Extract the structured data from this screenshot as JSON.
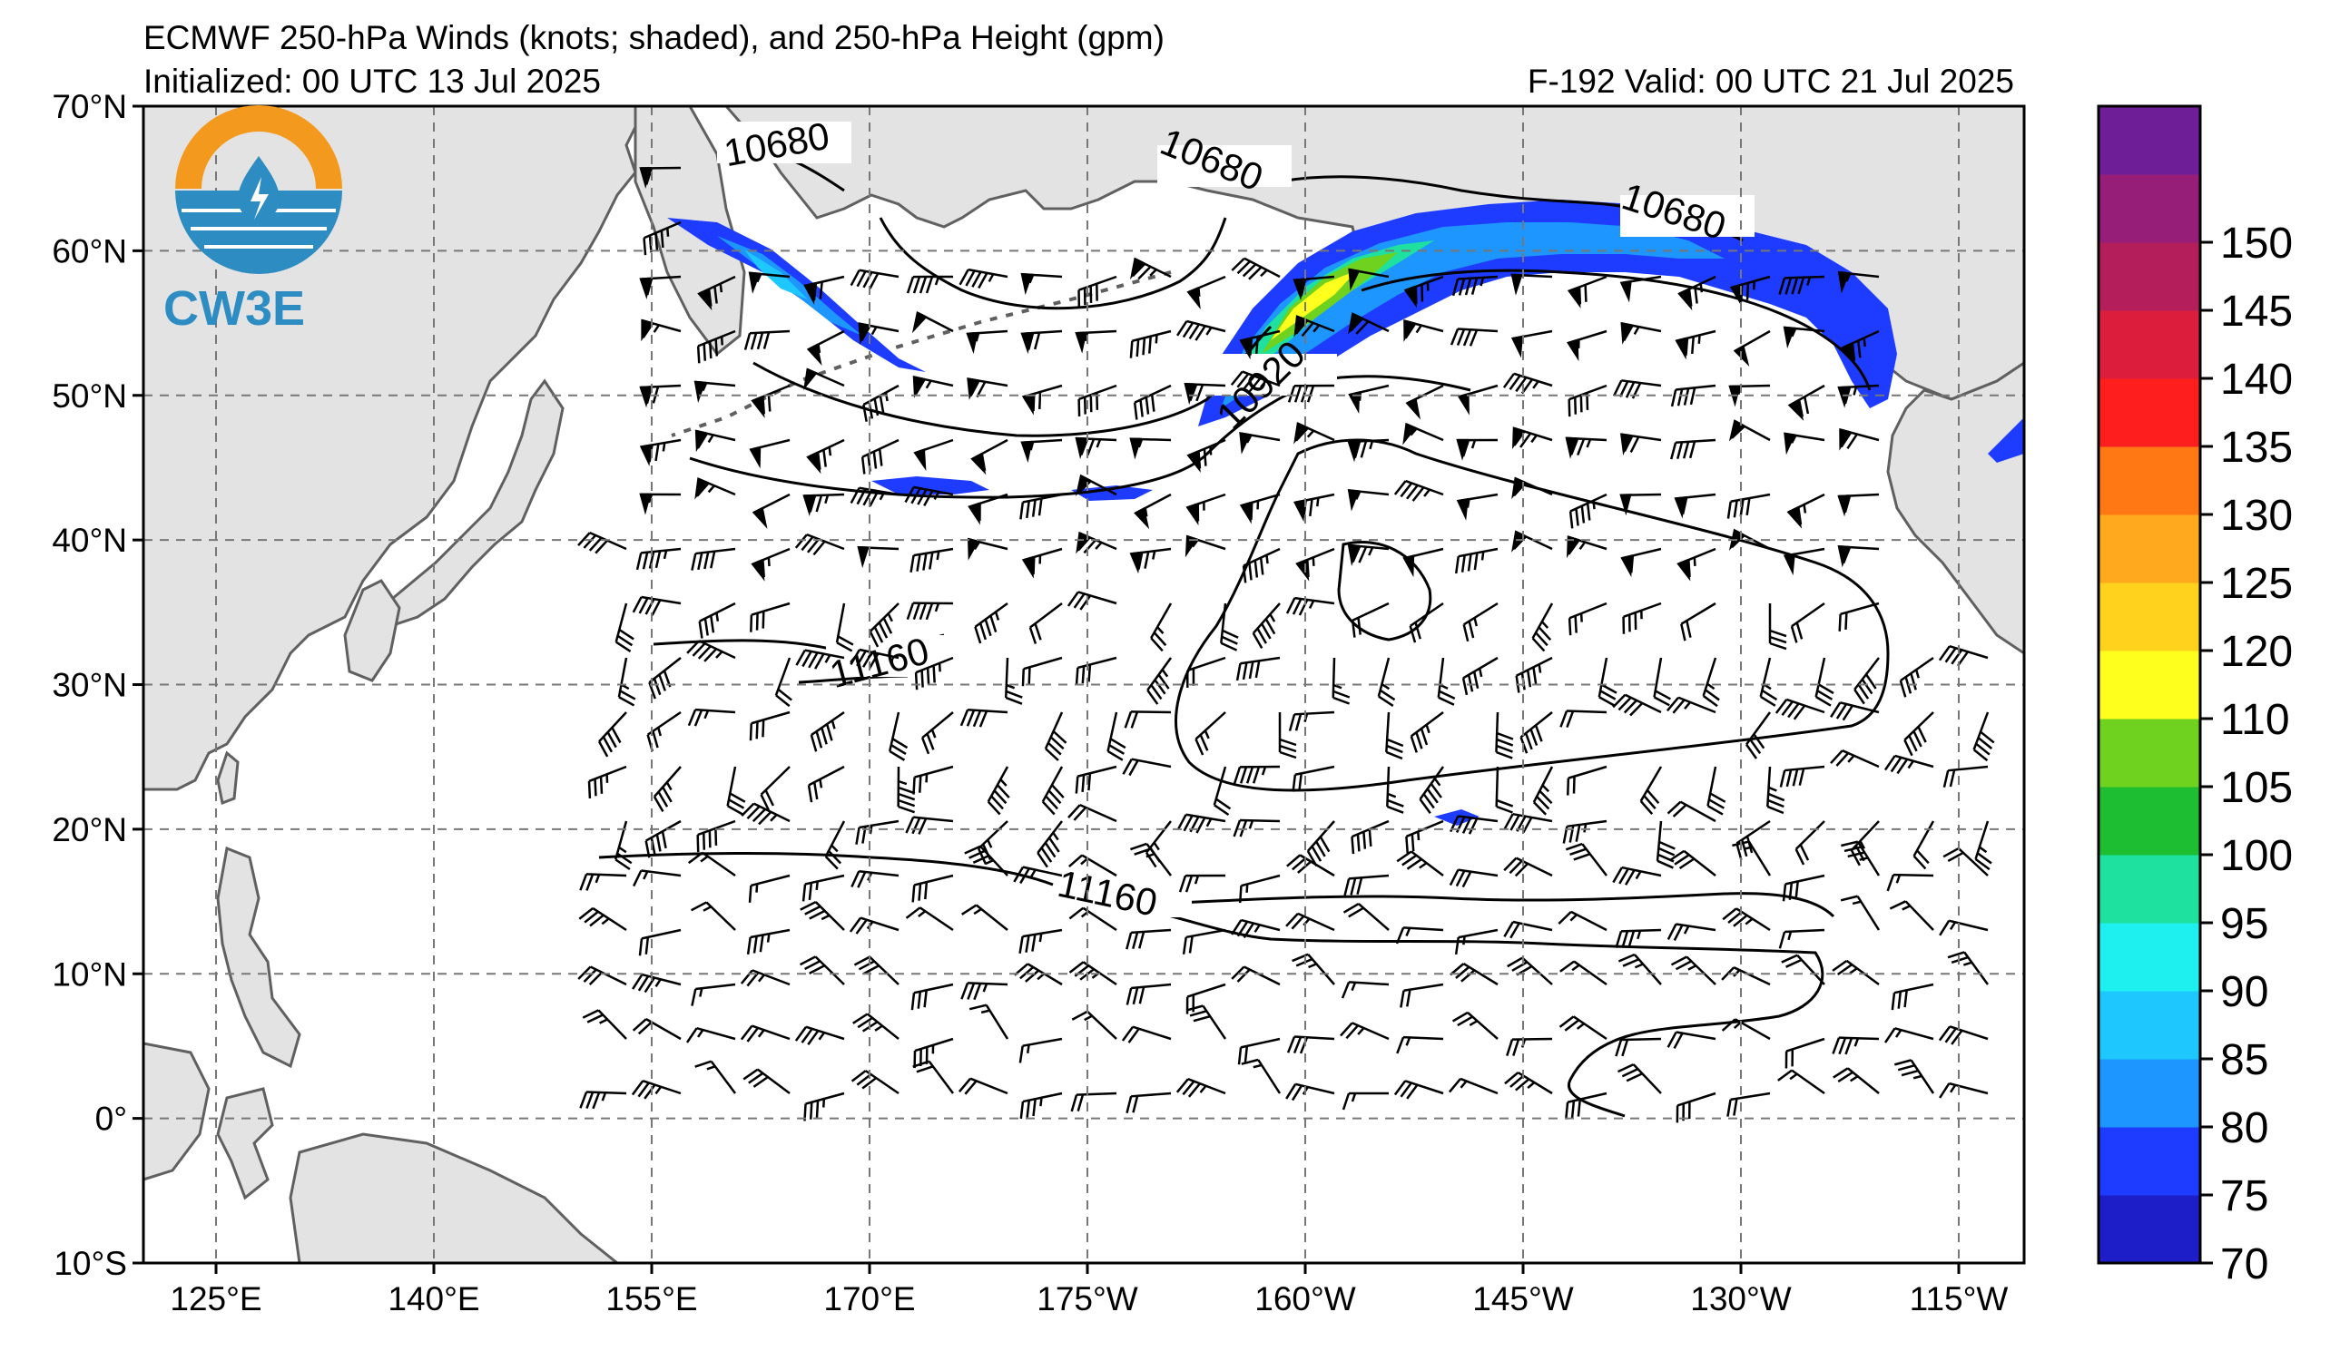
{
  "header": {
    "title": "ECMWF 250-hPa Winds (knots; shaded), and 250-hPa Height (gpm)",
    "initialized": "Initialized: 00 UTC 13 Jul 2025",
    "valid": "F-192  Valid: 00 UTC 21 Jul 2025"
  },
  "logo": {
    "text": "CW3E",
    "icon": "water-drop-lightning-icon",
    "color_orange": "#f39a1e",
    "color_blue": "#2d8cc2"
  },
  "axes": {
    "lat_labels": [
      "70°N",
      "60°N",
      "50°N",
      "40°N",
      "30°N",
      "20°N",
      "10°N",
      "0°",
      "10°S"
    ],
    "lon_labels": [
      "125°E",
      "140°E",
      "155°E",
      "170°E",
      "175°W",
      "160°W",
      "145°W",
      "130°W",
      "115°W"
    ]
  },
  "colorbar": {
    "ticks": [
      "70",
      "75",
      "80",
      "85",
      "90",
      "95",
      "100",
      "105",
      "110",
      "120",
      "125",
      "130",
      "135",
      "140",
      "145",
      "150"
    ],
    "colors": [
      "#1e1ec8",
      "#1e3cff",
      "#1e96ff",
      "#1ec8ff",
      "#1ef0f0",
      "#1ee1a0",
      "#1ebe32",
      "#6ed21e",
      "#ffff1e",
      "#ffd21e",
      "#ffaa1e",
      "#ff7814",
      "#ff1e1e",
      "#dc1e3c",
      "#b41e5a",
      "#961e78",
      "#6e1e96"
    ]
  },
  "contour_labels": [
    {
      "text": "10680",
      "name": "contour-label-10680-west"
    },
    {
      "text": "10680",
      "name": "contour-label-10680-north"
    },
    {
      "text": "10680",
      "name": "contour-label-10680-east"
    },
    {
      "text": "10920",
      "name": "contour-label-10920"
    },
    {
      "text": "11160",
      "name": "contour-label-11160-north"
    },
    {
      "text": "11160",
      "name": "contour-label-11160-south"
    }
  ]
}
